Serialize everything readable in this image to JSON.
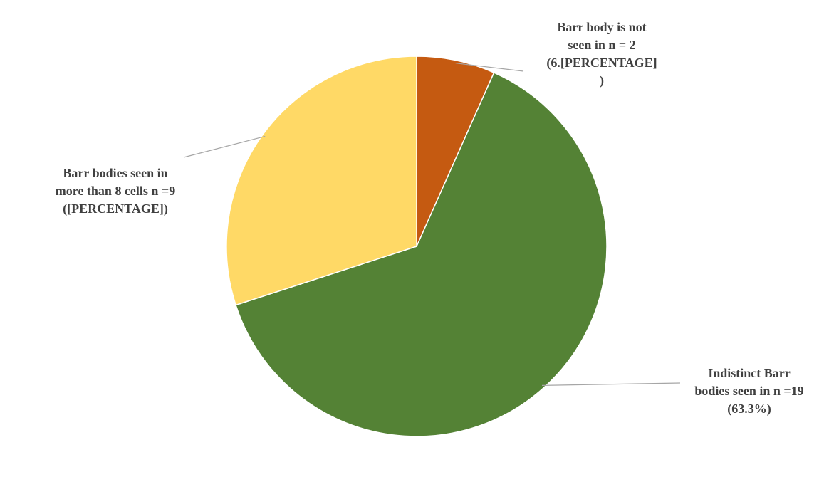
{
  "chart_data": {
    "type": "pie",
    "slices": [
      {
        "label_lines": [
          "Barr body is not",
          "seen in n = 2",
          "(6.[PERCENTAGE]",
          ")"
        ],
        "n": 2,
        "color": "#c55a11"
      },
      {
        "label_lines": [
          "Indistinct Barr",
          "bodies seen in n =19",
          "(63.3%)"
        ],
        "n": 19,
        "color": "#548235"
      },
      {
        "label_lines": [
          "Barr bodies seen in",
          "more than 8 cells n =9",
          "([PERCENTAGE])"
        ],
        "n": 9,
        "color": "#ffd966"
      }
    ],
    "start_angle_deg": 0,
    "direction": "clockwise",
    "legend": "none"
  }
}
